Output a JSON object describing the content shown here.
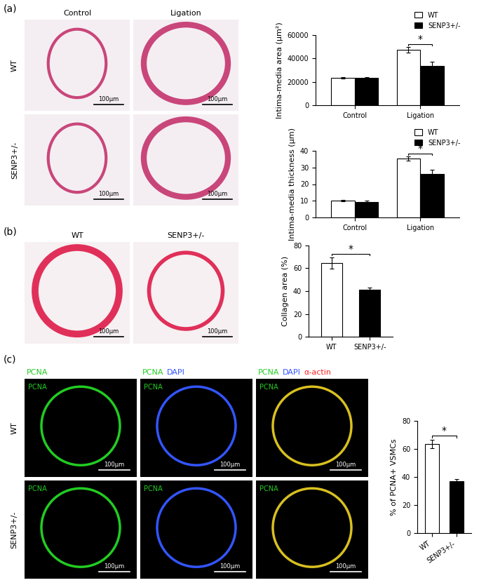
{
  "panels": {
    "a": {
      "label": "(a)",
      "columns": [
        "Control",
        "Ligation"
      ],
      "rows": [
        "WT",
        "SENP3+/-"
      ],
      "scale_bar": "100µm"
    },
    "b": {
      "label": "(b)",
      "columns": [
        "WT",
        "SENP3+/-"
      ],
      "scale_bar": "100µm"
    },
    "c": {
      "label": "(c)",
      "rows": [
        "WT",
        "SENP3+/-"
      ],
      "channels": [
        {
          "name": "PCNA",
          "color": "#22cc22"
        },
        {
          "name": "DAPI",
          "color": "#3355ff"
        },
        {
          "name": "α-actin",
          "color": "#ff2222"
        }
      ],
      "columns": [
        [
          "PCNA"
        ],
        [
          "PCNA",
          "DAPI"
        ],
        [
          "PCNA",
          "DAPI",
          "α-actin"
        ]
      ],
      "scale_bar": "100µm"
    }
  },
  "chart_data": [
    {
      "type": "bar",
      "ylabel": "Intima-media area (µm²)",
      "categories": [
        "Control",
        "Ligation"
      ],
      "series": [
        {
          "name": "WT",
          "color": "#ffffff",
          "values": [
            23500,
            47500
          ],
          "errors": [
            800,
            2500
          ]
        },
        {
          "name": "SENP3+/-",
          "color": "#000000",
          "values": [
            23500,
            33500
          ],
          "errors": [
            700,
            3500
          ]
        }
      ],
      "ylim": [
        0,
        60000
      ],
      "yticks": [
        0,
        20000,
        40000,
        60000
      ],
      "legend": "upper right",
      "annotations": [
        {
          "text": "*",
          "category": "Ligation"
        }
      ]
    },
    {
      "type": "bar",
      "ylabel": "Intima-media thickness (µm)",
      "categories": [
        "Control",
        "Ligation"
      ],
      "series": [
        {
          "name": "WT",
          "color": "#ffffff",
          "values": [
            10,
            35.5
          ],
          "errors": [
            0.5,
            1.2
          ]
        },
        {
          "name": "SENP3+/-",
          "color": "#000000",
          "values": [
            9.3,
            26.2
          ],
          "errors": [
            1.0,
            2.5
          ]
        }
      ],
      "ylim": [
        0,
        40
      ],
      "yticks": [
        0,
        10,
        20,
        30,
        40
      ],
      "legend": "upper right",
      "annotations": [
        {
          "text": "*",
          "category": "Ligation"
        }
      ]
    },
    {
      "type": "bar",
      "ylabel": "Collagen area (%)",
      "categories": [
        "WT",
        "SENP3+/-"
      ],
      "values": [
        64.5,
        41
      ],
      "errors": [
        5,
        2
      ],
      "colors": [
        "#ffffff",
        "#000000"
      ],
      "ylim": [
        0,
        80
      ],
      "yticks": [
        0,
        20,
        40,
        60,
        80
      ],
      "annotations": [
        {
          "text": "*",
          "between": [
            "WT",
            "SENP3+/-"
          ]
        }
      ]
    },
    {
      "type": "bar",
      "ylabel": "% of PCNA+ VSMCs",
      "categories": [
        "WT",
        "SENP3+/-"
      ],
      "values": [
        63.5,
        37
      ],
      "errors": [
        3,
        1.5
      ],
      "colors": [
        "#ffffff",
        "#000000"
      ],
      "ylim": [
        0,
        80
      ],
      "yticks": [
        0,
        20,
        40,
        60,
        80
      ],
      "annotations": [
        {
          "text": "*",
          "between": [
            "WT",
            "SENP3+/-"
          ]
        }
      ]
    }
  ]
}
